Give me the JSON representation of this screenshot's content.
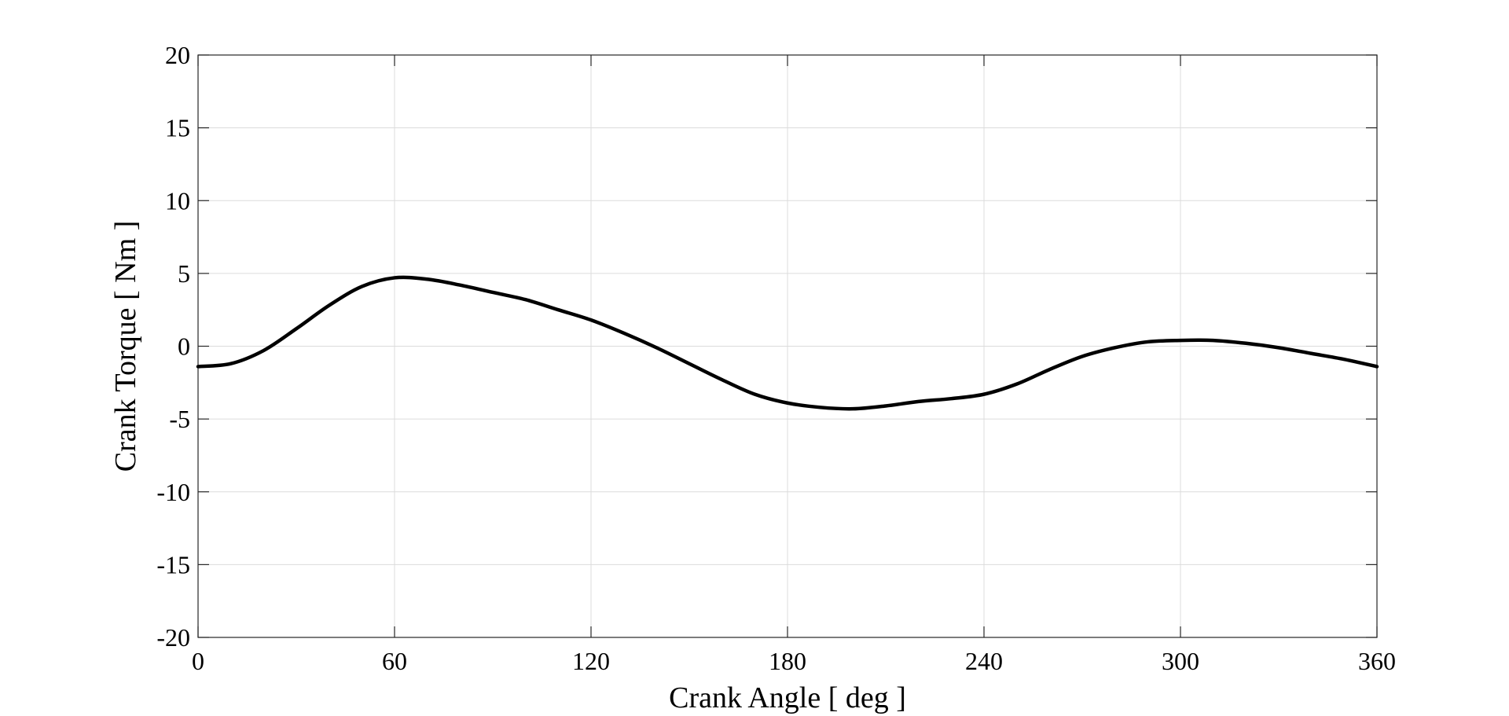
{
  "chart_data": {
    "type": "line",
    "xlabel": "Crank Angle [ deg ]",
    "ylabel": "Crank Torque [ Nm ]",
    "xlim": [
      0,
      360
    ],
    "ylim": [
      -20,
      20
    ],
    "xticks": [
      0,
      60,
      120,
      180,
      240,
      300,
      360
    ],
    "yticks": [
      20,
      15,
      10,
      5,
      0,
      -5,
      -10,
      -15,
      -20
    ],
    "xtick_labels": [
      "0",
      "60",
      "120",
      "180",
      "240",
      "300",
      "360"
    ],
    "ytick_labels": [
      "20",
      "15",
      "10",
      "5",
      "0",
      "-5",
      "-10",
      "-15",
      "-20"
    ],
    "grid": true,
    "series": [
      {
        "color": "#000000",
        "x": [
          0,
          10,
          20,
          30,
          40,
          50,
          60,
          70,
          80,
          90,
          100,
          110,
          120,
          130,
          140,
          150,
          160,
          170,
          180,
          190,
          200,
          210,
          220,
          230,
          240,
          250,
          260,
          270,
          280,
          290,
          300,
          310,
          320,
          330,
          340,
          350,
          360
        ],
        "y": [
          -1.4,
          -1.2,
          -0.3,
          1.2,
          2.8,
          4.1,
          4.7,
          4.6,
          4.2,
          3.7,
          3.2,
          2.5,
          1.8,
          0.9,
          -0.1,
          -1.2,
          -2.3,
          -3.3,
          -3.9,
          -4.2,
          -4.3,
          -4.1,
          -3.8,
          -3.6,
          -3.3,
          -2.6,
          -1.6,
          -0.7,
          -0.1,
          0.3,
          0.4,
          0.4,
          0.2,
          -0.1,
          -0.5,
          -0.9,
          -1.4
        ]
      }
    ]
  }
}
